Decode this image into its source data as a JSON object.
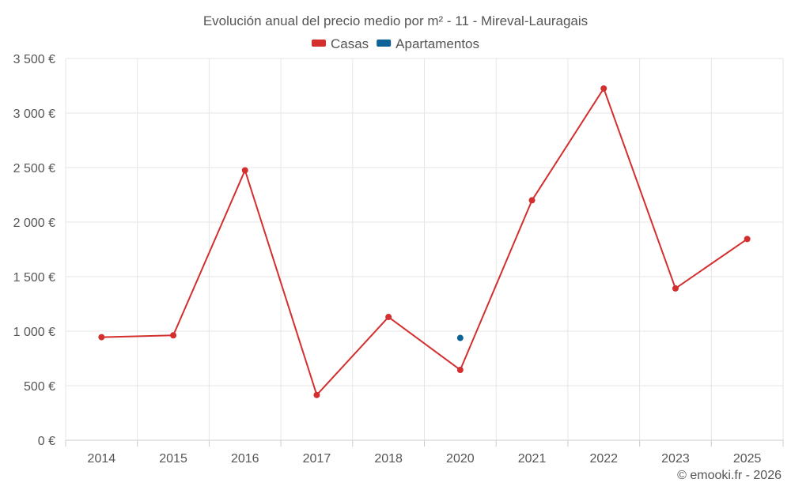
{
  "chart_data": {
    "type": "line",
    "title": "Evolución anual del precio medio por m² - 11 - Mireval-Lauragais",
    "categories": [
      "2014",
      "2015",
      "2016",
      "2017",
      "2018",
      "2020",
      "2021",
      "2022",
      "2023",
      "2025"
    ],
    "y_tick_labels": [
      "0 €",
      "500 €",
      "1 000 €",
      "1 500 €",
      "2 000 €",
      "2 500 €",
      "3 000 €",
      "3 500 €"
    ],
    "y_ticks": [
      0,
      500,
      1000,
      1500,
      2000,
      2500,
      3000,
      3500
    ],
    "ylim": [
      0,
      3500
    ],
    "grid": true,
    "legend_position": "top-center",
    "series": [
      {
        "name": "Casas",
        "color": "#d32f2f",
        "values": [
          945,
          962,
          2475,
          415,
          1130,
          645,
          2200,
          3225,
          1392,
          1845
        ]
      },
      {
        "name": "Apartamentos",
        "color": "#0d6398",
        "values": [
          null,
          null,
          null,
          null,
          null,
          938,
          null,
          null,
          null,
          null
        ]
      }
    ]
  },
  "credit": "© emooki.fr - 2026"
}
